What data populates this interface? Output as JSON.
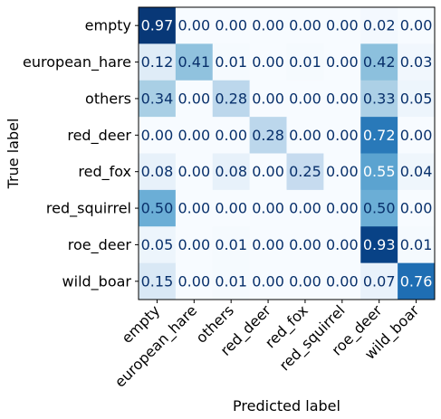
{
  "chart_data": {
    "type": "heatmap",
    "xlabel": "Predicted label",
    "ylabel": "True label",
    "rows": [
      "empty",
      "european_hare",
      "others",
      "red_deer",
      "red_fox",
      "red_squirrel",
      "roe_deer",
      "wild_boar"
    ],
    "cols": [
      "empty",
      "european_hare",
      "others",
      "red_deer",
      "red_fox",
      "red_squirrel",
      "roe_deer",
      "wild_boar"
    ],
    "values": [
      [
        0.97,
        0.0,
        0.0,
        0.0,
        0.0,
        0.0,
        0.02,
        0.0
      ],
      [
        0.12,
        0.41,
        0.01,
        0.0,
        0.01,
        0.0,
        0.42,
        0.03
      ],
      [
        0.34,
        0.0,
        0.28,
        0.0,
        0.0,
        0.0,
        0.33,
        0.05
      ],
      [
        0.0,
        0.0,
        0.0,
        0.28,
        0.0,
        0.0,
        0.72,
        0.0
      ],
      [
        0.08,
        0.0,
        0.08,
        0.0,
        0.25,
        0.0,
        0.55,
        0.04
      ],
      [
        0.5,
        0.0,
        0.0,
        0.0,
        0.0,
        0.0,
        0.5,
        0.0
      ],
      [
        0.05,
        0.0,
        0.01,
        0.0,
        0.0,
        0.0,
        0.93,
        0.01
      ],
      [
        0.15,
        0.0,
        0.01,
        0.0,
        0.0,
        0.0,
        0.07,
        0.76
      ]
    ],
    "colormap": "Blues",
    "color_range": [
      0,
      1
    ],
    "grid": false,
    "legend": "none"
  }
}
